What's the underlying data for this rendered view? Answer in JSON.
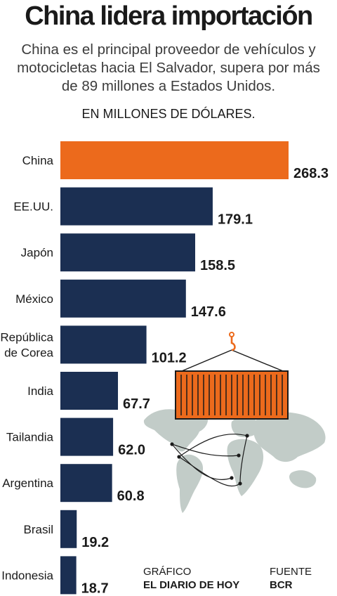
{
  "title": "China lidera importación",
  "subtitle": "China es el principal proveedor de vehículos y motocicletas hacia El Salvador, supera por más de 89 millones a Estados Unidos.",
  "units_label": "EN MILLONES DE DÓLARES.",
  "chart_data": {
    "type": "bar",
    "orientation": "horizontal",
    "title": "China lidera importación",
    "ylabel": "EN MILLONES DE DÓLARES.",
    "categories": [
      "China",
      "EE.UU.",
      "Japón",
      "México",
      "República de Corea",
      "India",
      "Tailandia",
      "Argentina",
      "Brasil",
      "Indonesia"
    ],
    "category_lines": [
      [
        "China"
      ],
      [
        "EE.UU."
      ],
      [
        "Japón"
      ],
      [
        "México"
      ],
      [
        "República",
        "de Corea"
      ],
      [
        "India"
      ],
      [
        "Tailandia"
      ],
      [
        "Argentina"
      ],
      [
        "Brasil"
      ],
      [
        "Indonesia"
      ]
    ],
    "values": [
      268.3,
      179.1,
      158.5,
      147.6,
      101.2,
      67.7,
      62.0,
      60.8,
      19.2,
      18.7
    ],
    "value_labels": [
      "268.3",
      "179.1",
      "158.5",
      "147.6",
      "101.2",
      "67.7",
      "62.0",
      "60.8",
      "19.2",
      "18.7"
    ],
    "xlim": [
      0,
      268.3
    ],
    "grid": false,
    "legend": "none",
    "colors": {
      "highlight": "#ec6a1c",
      "default": "#1b2f52"
    }
  },
  "credits": {
    "graphic_label": "GRÁFICO",
    "graphic_value": "EL DIARIO DE HOY",
    "source_label": "FUENTE",
    "source_value": "BCR"
  },
  "illustration": {
    "icons": [
      "shipping-container-icon",
      "crane-hook-icon",
      "world-map-icon",
      "trade-routes-icon"
    ],
    "colors": {
      "container": "#ec6a1c",
      "map": "#c2ccc8",
      "routes": "#1a1a1a"
    }
  }
}
